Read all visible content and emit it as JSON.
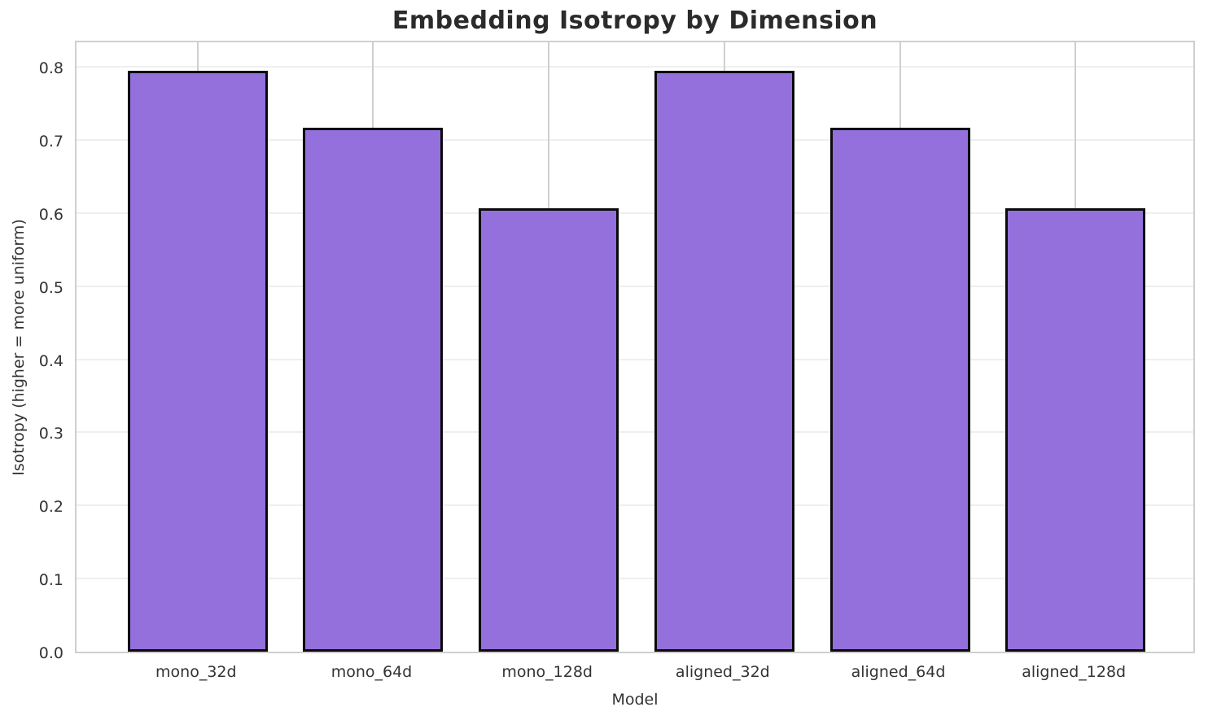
{
  "chart_data": {
    "type": "bar",
    "title": "Embedding Isotropy by Dimension",
    "xlabel": "Model",
    "ylabel": "Isotropy (higher = more uniform)",
    "categories": [
      "mono_32d",
      "mono_64d",
      "mono_128d",
      "aligned_32d",
      "aligned_64d",
      "aligned_128d"
    ],
    "values": [
      0.795,
      0.717,
      0.606,
      0.795,
      0.717,
      0.606
    ],
    "ylim": [
      0,
      0.838
    ],
    "yticks": [
      0.0,
      0.1,
      0.2,
      0.3,
      0.4,
      0.5,
      0.6,
      0.7,
      0.8
    ],
    "ytick_labels": [
      "0.0",
      "0.1",
      "0.2",
      "0.3",
      "0.4",
      "0.5",
      "0.6",
      "0.7",
      "0.8"
    ],
    "grid": true,
    "legend": null,
    "colors": {
      "bar_fill": "#9370DB",
      "bar_edge": "#0a0a0a",
      "hgrid": "#efefef",
      "vgrid": "#cfcfcf",
      "spine": "#cfcfcf",
      "title": "#2b2b2b",
      "tick_label": "#333333",
      "axis_label": "#333333",
      "background": "#ffffff"
    }
  }
}
